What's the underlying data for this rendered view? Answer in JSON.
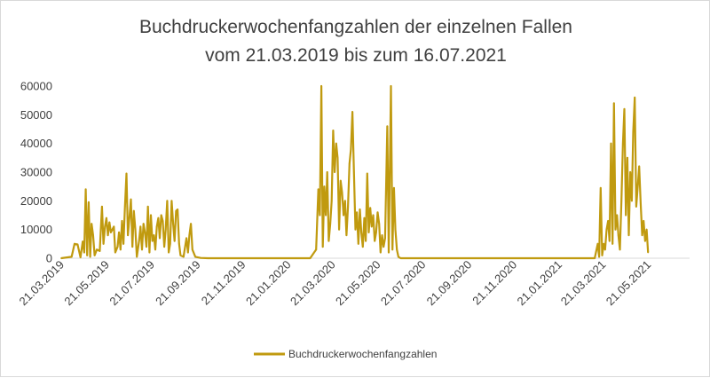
{
  "chart_data": {
    "type": "line",
    "title": "Buchdruckerwochenfangzahlen der einzelnen Fallen",
    "subtitle": "vom 21.03.2019 bis zum 16.07.2021",
    "xlabel": "",
    "ylabel": "",
    "ylim": [
      0,
      60000
    ],
    "y_ticks": [
      "0",
      "10000",
      "20000",
      "30000",
      "40000",
      "50000",
      "60000"
    ],
    "x_ticks": [
      "21.03.2019",
      "21.05.2019",
      "21.07.2019",
      "21.09.2019",
      "21.11.2019",
      "21.01.2020",
      "21.03.2020",
      "21.05.2020",
      "21.07.2020",
      "21.09.2020",
      "21.11.2020",
      "21.01.2021",
      "21.03.2021",
      "21.05.2021"
    ],
    "x_range": [
      "21.03.2019",
      "16.07.2021"
    ],
    "grid": false,
    "legend": "bottom",
    "series_color": "#C09A0F",
    "series": [
      {
        "name": "Buchdruckerwochenfangzahlen",
        "points": [
          [
            "21.03.2019",
            0
          ],
          [
            "04.04.2019",
            500
          ],
          [
            "08.04.2019",
            5000
          ],
          [
            "12.04.2019",
            4800
          ],
          [
            "16.04.2019",
            300
          ],
          [
            "19.04.2019",
            5800
          ],
          [
            "21.04.2019",
            2000
          ],
          [
            "23.04.2019",
            24000
          ],
          [
            "25.04.2019",
            1000
          ],
          [
            "27.04.2019",
            19500
          ],
          [
            "29.04.2019",
            500
          ],
          [
            "01.05.2019",
            12000
          ],
          [
            "03.05.2019",
            8000
          ],
          [
            "05.05.2019",
            1000
          ],
          [
            "08.05.2019",
            3000
          ],
          [
            "12.05.2019",
            2500
          ],
          [
            "15.05.2019",
            18000
          ],
          [
            "17.05.2019",
            5000
          ],
          [
            "19.05.2019",
            11000
          ],
          [
            "21.05.2019",
            14000
          ],
          [
            "23.05.2019",
            8000
          ],
          [
            "25.05.2019",
            12500
          ],
          [
            "27.05.2019",
            9000
          ],
          [
            "29.05.2019",
            10000
          ],
          [
            "31.05.2019",
            11000
          ],
          [
            "02.06.2019",
            2000
          ],
          [
            "05.06.2019",
            4000
          ],
          [
            "07.06.2019",
            9000
          ],
          [
            "09.06.2019",
            3000
          ],
          [
            "11.06.2019",
            13000
          ],
          [
            "13.06.2019",
            5000
          ],
          [
            "15.06.2019",
            18000
          ],
          [
            "17.06.2019",
            29500
          ],
          [
            "19.06.2019",
            8000
          ],
          [
            "21.06.2019",
            14000
          ],
          [
            "23.06.2019",
            20500
          ],
          [
            "25.06.2019",
            4000
          ],
          [
            "27.06.2019",
            16500
          ],
          [
            "29.06.2019",
            10000
          ],
          [
            "01.07.2019",
            500
          ],
          [
            "04.07.2019",
            6000
          ],
          [
            "06.07.2019",
            11000
          ],
          [
            "08.07.2019",
            3000
          ],
          [
            "10.07.2019",
            12000
          ],
          [
            "12.07.2019",
            9000
          ],
          [
            "14.07.2019",
            4000
          ],
          [
            "16.07.2019",
            18000
          ],
          [
            "18.07.2019",
            2000
          ],
          [
            "20.07.2019",
            15000
          ],
          [
            "22.07.2019",
            6000
          ],
          [
            "24.07.2019",
            8000
          ],
          [
            "26.07.2019",
            3000
          ],
          [
            "28.07.2019",
            11000
          ],
          [
            "30.07.2019",
            14000
          ],
          [
            "01.08.2019",
            7000
          ],
          [
            "03.08.2019",
            15000
          ],
          [
            "05.08.2019",
            13000
          ],
          [
            "07.08.2019",
            4000
          ],
          [
            "09.08.2019",
            10000
          ],
          [
            "11.08.2019",
            20000
          ],
          [
            "13.08.2019",
            2000
          ],
          [
            "15.08.2019",
            5000
          ],
          [
            "17.08.2019",
            20000
          ],
          [
            "19.08.2019",
            12000
          ],
          [
            "21.08.2019",
            6000
          ],
          [
            "23.08.2019",
            16500
          ],
          [
            "25.08.2019",
            17000
          ],
          [
            "27.08.2019",
            5000
          ],
          [
            "29.08.2019",
            1000
          ],
          [
            "02.09.2019",
            500
          ],
          [
            "06.09.2019",
            7000
          ],
          [
            "08.09.2019",
            2000
          ],
          [
            "10.09.2019",
            8000
          ],
          [
            "12.09.2019",
            12000
          ],
          [
            "14.09.2019",
            3000
          ],
          [
            "18.09.2019",
            500
          ],
          [
            "25.09.2019",
            100
          ],
          [
            "05.10.2019",
            0
          ],
          [
            "01.02.2020",
            0
          ],
          [
            "20.02.2020",
            0
          ],
          [
            "28.02.2020",
            3000
          ],
          [
            "02.03.2020",
            24000
          ],
          [
            "04.03.2020",
            15000
          ],
          [
            "06.03.2020",
            60000
          ],
          [
            "08.03.2020",
            4000
          ],
          [
            "10.03.2020",
            25000
          ],
          [
            "12.03.2020",
            15000
          ],
          [
            "14.03.2020",
            30000
          ],
          [
            "16.03.2020",
            6000
          ],
          [
            "18.03.2020",
            12000
          ],
          [
            "20.03.2020",
            20000
          ],
          [
            "22.03.2020",
            44500
          ],
          [
            "24.03.2020",
            30000
          ],
          [
            "26.03.2020",
            40000
          ],
          [
            "28.03.2020",
            35000
          ],
          [
            "30.03.2020",
            10000
          ],
          [
            "01.04.2020",
            27000
          ],
          [
            "03.04.2020",
            23000
          ],
          [
            "05.04.2020",
            15000
          ],
          [
            "07.04.2020",
            20000
          ],
          [
            "09.04.2020",
            8000
          ],
          [
            "11.04.2020",
            18000
          ],
          [
            "13.04.2020",
            33000
          ],
          [
            "15.04.2020",
            38000
          ],
          [
            "17.04.2020",
            51000
          ],
          [
            "19.04.2020",
            30000
          ],
          [
            "21.04.2020",
            10000
          ],
          [
            "23.04.2020",
            16000
          ],
          [
            "25.04.2020",
            5000
          ],
          [
            "27.04.2020",
            17000
          ],
          [
            "29.04.2020",
            9000
          ],
          [
            "01.05.2020",
            4000
          ],
          [
            "03.05.2020",
            14000
          ],
          [
            "05.05.2020",
            6000
          ],
          [
            "07.05.2020",
            29500
          ],
          [
            "09.05.2020",
            9000
          ],
          [
            "11.05.2020",
            17500
          ],
          [
            "13.05.2020",
            11000
          ],
          [
            "15.05.2020",
            15000
          ],
          [
            "17.05.2020",
            6000
          ],
          [
            "19.05.2020",
            9000
          ],
          [
            "21.05.2020",
            16000
          ],
          [
            "23.05.2020",
            12000
          ],
          [
            "25.05.2020",
            2000
          ],
          [
            "27.05.2020",
            8000
          ],
          [
            "29.05.2020",
            4000
          ],
          [
            "31.05.2020",
            7000
          ],
          [
            "03.06.2020",
            46000
          ],
          [
            "05.06.2020",
            2000
          ],
          [
            "08.06.2020",
            60000
          ],
          [
            "10.06.2020",
            3000
          ],
          [
            "12.06.2020",
            24500
          ],
          [
            "14.06.2020",
            10000
          ],
          [
            "16.06.2020",
            3000
          ],
          [
            "18.06.2020",
            500
          ],
          [
            "21.06.2020",
            0
          ],
          [
            "10.03.2021",
            0
          ],
          [
            "14.03.2021",
            5000
          ],
          [
            "16.03.2021",
            500
          ],
          [
            "18.03.2021",
            24500
          ],
          [
            "20.03.2021",
            1000
          ],
          [
            "22.03.2021",
            5000
          ],
          [
            "24.03.2021",
            3000
          ],
          [
            "26.03.2021",
            10000
          ],
          [
            "28.03.2021",
            13000
          ],
          [
            "30.03.2021",
            6000
          ],
          [
            "01.04.2021",
            40000
          ],
          [
            "03.04.2021",
            5000
          ],
          [
            "05.04.2021",
            54000
          ],
          [
            "07.04.2021",
            10000
          ],
          [
            "09.04.2021",
            15000
          ],
          [
            "11.04.2021",
            8000
          ],
          [
            "13.04.2021",
            3000
          ],
          [
            "15.04.2021",
            20000
          ],
          [
            "17.04.2021",
            40000
          ],
          [
            "19.04.2021",
            52000
          ],
          [
            "21.04.2021",
            15000
          ],
          [
            "23.04.2021",
            35000
          ],
          [
            "25.04.2021",
            8000
          ],
          [
            "27.04.2021",
            30000
          ],
          [
            "29.04.2021",
            20000
          ],
          [
            "01.05.2021",
            44000
          ],
          [
            "03.05.2021",
            56000
          ],
          [
            "05.05.2021",
            18000
          ],
          [
            "07.05.2021",
            25000
          ],
          [
            "09.05.2021",
            32000
          ],
          [
            "11.05.2021",
            19000
          ],
          [
            "13.05.2021",
            8000
          ],
          [
            "15.05.2021",
            13000
          ],
          [
            "17.05.2021",
            6000
          ],
          [
            "19.05.2021",
            10000
          ],
          [
            "21.05.2021",
            2000
          ]
        ]
      }
    ]
  }
}
